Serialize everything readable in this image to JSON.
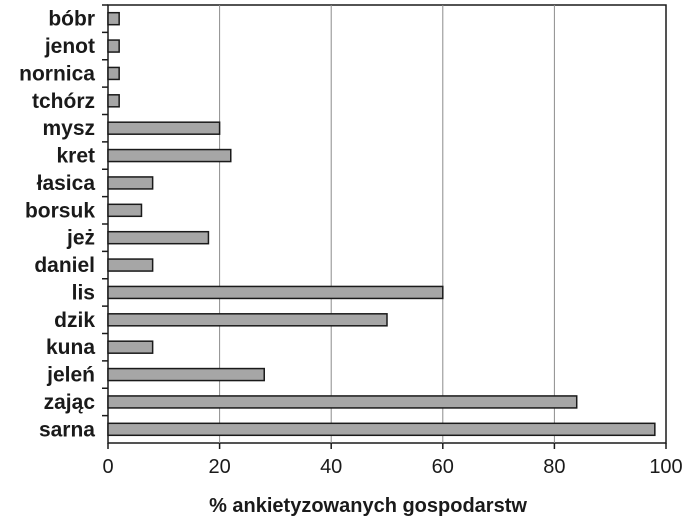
{
  "chart_data": {
    "type": "bar",
    "orientation": "horizontal",
    "categories": [
      "bóbr",
      "jenot",
      "nornica",
      "tchórz",
      "mysz",
      "kret",
      "łasica",
      "borsuk",
      "jeż",
      "daniel",
      "lis",
      "dzik",
      "kuna",
      "jeleń",
      "zając",
      "sarna"
    ],
    "values": [
      2,
      2,
      2,
      2,
      20,
      22,
      8,
      6,
      18,
      8,
      60,
      50,
      8,
      28,
      84,
      98
    ],
    "xlabel": "% ankietyzowanych gospodarstw",
    "xlim": [
      0,
      100
    ],
    "xticks": [
      "0",
      "20",
      "40",
      "60",
      "80",
      "100"
    ],
    "grid": "vertical lines at major ticks",
    "colors": {
      "bar_fill": "#a6a6a6",
      "bar_stroke": "#1a1a1a",
      "grid": "#8c8c8c",
      "frame": "#1a1a1a"
    }
  }
}
